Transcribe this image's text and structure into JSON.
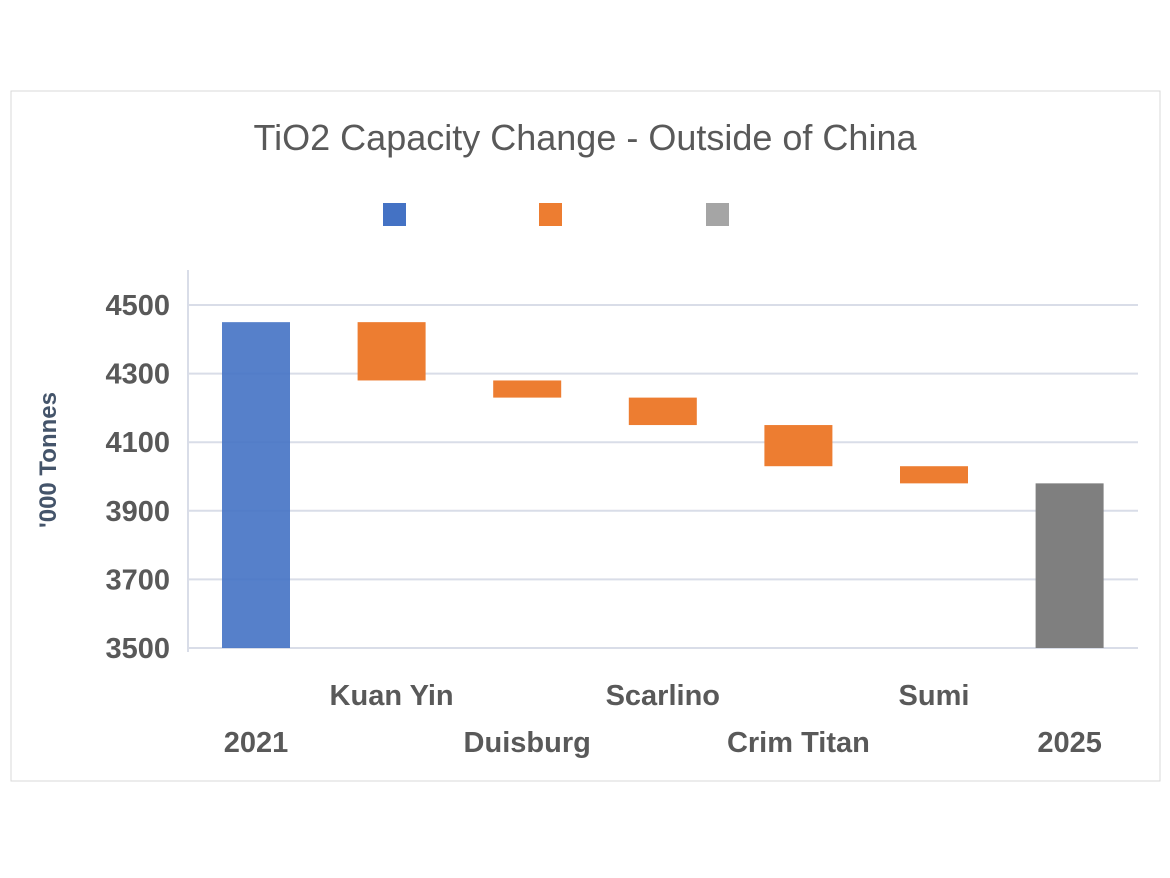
{
  "chart_data": {
    "type": "waterfall",
    "title": "TiO2 Capacity Change - Outside of China",
    "xlabel": "",
    "ylabel": "'000 Tonnes",
    "ylim": [
      3500,
      4600
    ],
    "yticks": [
      3500,
      3700,
      3900,
      4100,
      4300,
      4500
    ],
    "grid": true,
    "legend": {
      "placement": "top",
      "entries": [
        {
          "color": "#4472c4"
        },
        {
          "color": "#ed7d31"
        },
        {
          "color": "#a5a5a5"
        }
      ]
    },
    "categories": [
      "2021",
      "Kuan Yin",
      "Duisburg",
      "Scarlino",
      "Crim Titan",
      "Sumi",
      "2025"
    ],
    "bars": [
      {
        "label": "2021",
        "kind": "total",
        "start": 3500,
        "end": 4450,
        "color": "#4472c4"
      },
      {
        "label": "Kuan Yin",
        "kind": "decrease",
        "start": 4450,
        "end": 4280,
        "color": "#ed7d31"
      },
      {
        "label": "Duisburg",
        "kind": "decrease",
        "start": 4280,
        "end": 4230,
        "color": "#ed7d31"
      },
      {
        "label": "Scarlino",
        "kind": "decrease",
        "start": 4230,
        "end": 4150,
        "color": "#ed7d31"
      },
      {
        "label": "Crim Titan",
        "kind": "decrease",
        "start": 4150,
        "end": 4030,
        "color": "#ed7d31"
      },
      {
        "label": "Sumi",
        "kind": "decrease",
        "start": 4030,
        "end": 3980,
        "color": "#ed7d31"
      },
      {
        "label": "2025",
        "kind": "total",
        "start": 3500,
        "end": 3980,
        "color": "#7f7f7f"
      }
    ]
  }
}
